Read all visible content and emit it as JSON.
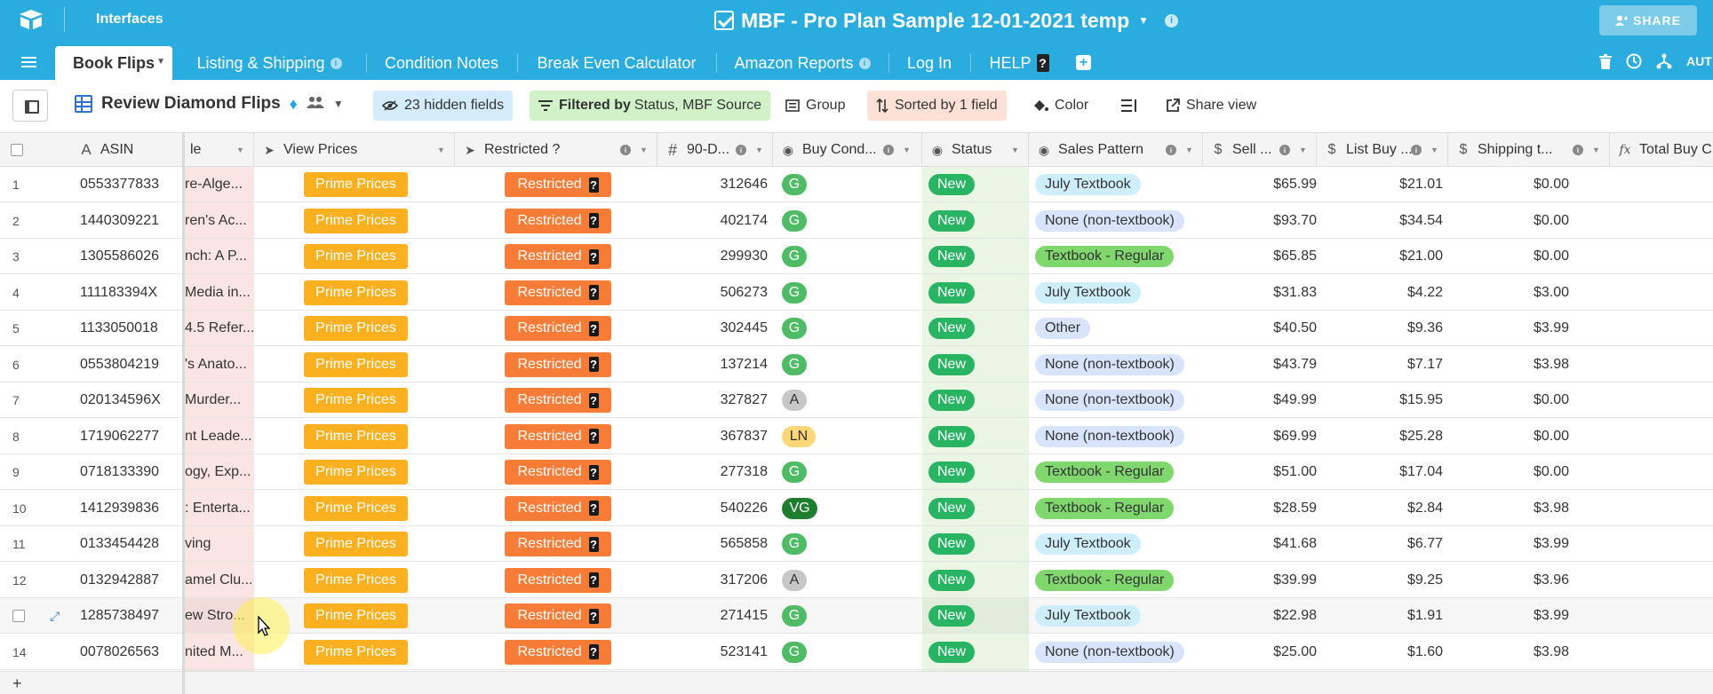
{
  "header": {
    "interfaces_label": "Interfaces",
    "base_title": "MBF - Pro Plan Sample 12-01-2021 temp",
    "share_label": "SHARE"
  },
  "tabs": [
    {
      "label": "Book Flips",
      "active": true
    },
    {
      "label": "Listing & Shipping"
    },
    {
      "label": "Condition Notes"
    },
    {
      "label": "Break Even Calculator"
    },
    {
      "label": "Amazon Reports"
    },
    {
      "label": "Log In"
    },
    {
      "label": "HELP"
    }
  ],
  "right_icons": {
    "aut_label": "AUT"
  },
  "view": {
    "name": "Review Diamond Flips",
    "hidden_fields": "23 hidden fields",
    "filter_prefix": "Filtered by",
    "filter_value": "Status, MBF Source",
    "group": "Group",
    "sorted": "Sorted by 1 field",
    "color": "Color",
    "share_view": "Share view"
  },
  "columns": {
    "asin": "ASIN",
    "title": "le",
    "view_prices": "View Prices",
    "restricted": "Restricted ?",
    "days90": "90-D...",
    "buy_cond": "Buy Cond...",
    "status": "Status",
    "sales_pattern": "Sales Pattern",
    "sell": "Sell ...",
    "list_buy": "List Buy ...",
    "shipping": "Shipping t...",
    "total_buy": "Total Buy C"
  },
  "cell_labels": {
    "prime": "Prime Prices",
    "restricted": "Restricted",
    "help_glyph": "?"
  },
  "rows": [
    {
      "num": "1",
      "asin": "0553377833",
      "title": "re-Alge...",
      "d90": "312646",
      "cond": "G",
      "status": "New",
      "sales": "July Textbook",
      "sell": "$65.99",
      "list": "$21.01",
      "ship": "$0.00"
    },
    {
      "num": "2",
      "asin": "1440309221",
      "title": "ren's Ac...",
      "d90": "402174",
      "cond": "G",
      "status": "New",
      "sales": "None (non-textbook)",
      "sell": "$93.70",
      "list": "$34.54",
      "ship": "$0.00"
    },
    {
      "num": "3",
      "asin": "1305586026",
      "title": "nch: A P...",
      "d90": "299930",
      "cond": "G",
      "status": "New",
      "sales": "Textbook - Regular",
      "sell": "$65.85",
      "list": "$21.00",
      "ship": "$0.00"
    },
    {
      "num": "4",
      "asin": "111183394X",
      "title": "Media in...",
      "d90": "506273",
      "cond": "G",
      "status": "New",
      "sales": "July Textbook",
      "sell": "$31.83",
      "list": "$4.22",
      "ship": "$3.00"
    },
    {
      "num": "5",
      "asin": "1133050018",
      "title": "4.5 Refer...",
      "d90": "302445",
      "cond": "G",
      "status": "New",
      "sales": "Other",
      "sell": "$40.50",
      "list": "$9.36",
      "ship": "$3.99"
    },
    {
      "num": "6",
      "asin": "0553804219",
      "title": "'s Anato...",
      "d90": "137214",
      "cond": "G",
      "status": "New",
      "sales": "None (non-textbook)",
      "sell": "$43.79",
      "list": "$7.17",
      "ship": "$3.98"
    },
    {
      "num": "7",
      "asin": "020134596X",
      "title": "Murder...",
      "d90": "327827",
      "cond": "A",
      "status": "New",
      "sales": "None (non-textbook)",
      "sell": "$49.99",
      "list": "$15.95",
      "ship": "$0.00"
    },
    {
      "num": "8",
      "asin": "1719062277",
      "title": "nt Leade...",
      "d90": "367837",
      "cond": "LN",
      "status": "New",
      "sales": "None (non-textbook)",
      "sell": "$69.99",
      "list": "$25.28",
      "ship": "$0.00"
    },
    {
      "num": "9",
      "asin": "0718133390",
      "title": "ogy, Exp...",
      "d90": "277318",
      "cond": "G",
      "status": "New",
      "sales": "Textbook - Regular",
      "sell": "$51.00",
      "list": "$17.04",
      "ship": "$0.00"
    },
    {
      "num": "10",
      "asin": "1412939836",
      "title": ": Enterta...",
      "d90": "540226",
      "cond": "VG",
      "status": "New",
      "sales": "Textbook - Regular",
      "sell": "$28.59",
      "list": "$2.84",
      "ship": "$3.98"
    },
    {
      "num": "11",
      "asin": "0133454428",
      "title": "ving",
      "d90": "565858",
      "cond": "G",
      "status": "New",
      "sales": "July Textbook",
      "sell": "$41.68",
      "list": "$6.77",
      "ship": "$3.99"
    },
    {
      "num": "12",
      "asin": "0132942887",
      "title": "amel Clu...",
      "d90": "317206",
      "cond": "A",
      "status": "New",
      "sales": "Textbook - Regular",
      "sell": "$39.99",
      "list": "$9.25",
      "ship": "$3.96"
    },
    {
      "num": "",
      "asin": "1285738497",
      "title": "ew Stro...",
      "d90": "271415",
      "cond": "G",
      "status": "New",
      "sales": "July Textbook",
      "sell": "$22.98",
      "list": "$1.91",
      "ship": "$3.99",
      "hover": true
    },
    {
      "num": "14",
      "asin": "0078026563",
      "title": "nited M...",
      "d90": "523141",
      "cond": "G",
      "status": "New",
      "sales": "None (non-textbook)",
      "sell": "$25.00",
      "list": "$1.60",
      "ship": "$3.98"
    }
  ],
  "add_row": "+",
  "colors": {
    "topbar": "#2bacde",
    "prime": "#fbb11f",
    "restricted": "#f77c37",
    "status": "#28b463"
  }
}
